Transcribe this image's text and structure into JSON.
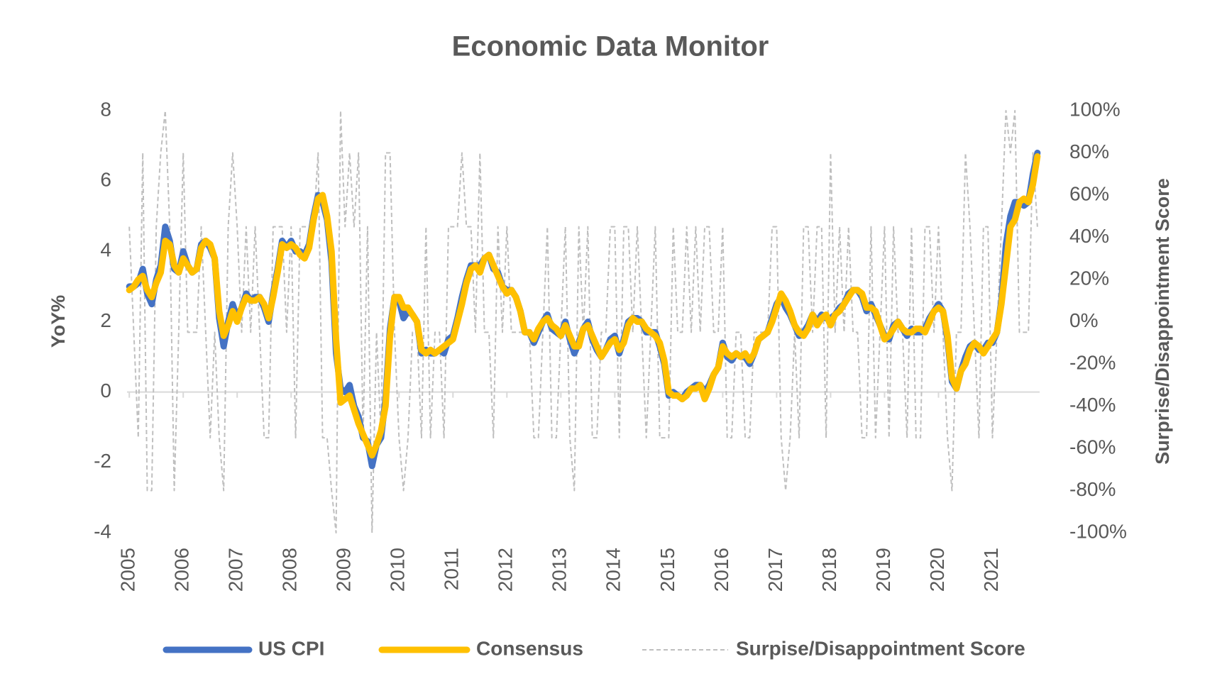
{
  "chart_data": {
    "type": "line",
    "title": "Economic Data Monitor",
    "y_label": "YoY%",
    "y2_label": "Surprise/Disappointment Score",
    "categories": [
      "2005",
      null,
      null,
      null,
      null,
      null,
      null,
      null,
      null,
      null,
      null,
      null,
      "2006",
      null,
      null,
      null,
      null,
      null,
      null,
      null,
      null,
      null,
      null,
      null,
      "2007",
      null,
      null,
      null,
      null,
      null,
      null,
      null,
      null,
      null,
      null,
      null,
      "2008",
      null,
      null,
      null,
      null,
      null,
      null,
      null,
      null,
      null,
      null,
      null,
      "2009",
      null,
      null,
      null,
      null,
      null,
      null,
      null,
      null,
      null,
      null,
      null,
      "2010",
      null,
      null,
      null,
      null,
      null,
      null,
      null,
      null,
      null,
      null,
      null,
      "2011",
      null,
      null,
      null,
      null,
      null,
      null,
      null,
      null,
      null,
      null,
      null,
      "2012",
      null,
      null,
      null,
      null,
      null,
      null,
      null,
      null,
      null,
      null,
      null,
      "2013",
      null,
      null,
      null,
      null,
      null,
      null,
      null,
      null,
      null,
      null,
      null,
      "2014",
      null,
      null,
      null,
      null,
      null,
      null,
      null,
      null,
      null,
      null,
      null,
      "2015",
      null,
      null,
      null,
      null,
      null,
      null,
      null,
      null,
      null,
      null,
      null,
      "2016",
      null,
      null,
      null,
      null,
      null,
      null,
      null,
      null,
      null,
      null,
      null,
      "2017",
      null,
      null,
      null,
      null,
      null,
      null,
      null,
      null,
      null,
      null,
      null,
      "2018",
      null,
      null,
      null,
      null,
      null,
      null,
      null,
      null,
      null,
      null,
      null,
      "2019",
      null,
      null,
      null,
      null,
      null,
      null,
      null,
      null,
      null,
      null,
      null,
      "2020",
      null,
      null,
      null,
      null,
      null,
      null,
      null,
      null,
      null,
      null,
      null,
      "2021",
      null,
      null,
      null,
      null,
      null,
      null,
      null,
      null,
      null,
      null
    ],
    "series": [
      {
        "name": "US CPI",
        "color": "#4472c4",
        "width": 9,
        "dashed": false,
        "values": [
          3.0,
          3.0,
          3.1,
          3.5,
          2.8,
          2.5,
          3.2,
          3.6,
          4.7,
          4.3,
          3.5,
          3.4,
          4.0,
          3.6,
          3.4,
          3.5,
          4.2,
          4.3,
          4.1,
          3.8,
          2.1,
          1.3,
          2.0,
          2.5,
          2.1,
          2.4,
          2.8,
          2.6,
          2.7,
          2.7,
          2.4,
          2.0,
          2.8,
          3.5,
          4.3,
          4.1,
          4.3,
          4.0,
          4.0,
          3.9,
          4.2,
          5.0,
          5.6,
          5.4,
          4.9,
          3.7,
          1.1,
          0.1,
          0.0,
          0.2,
          -0.4,
          -0.7,
          -1.3,
          -1.4,
          -2.1,
          -1.5,
          -1.3,
          -0.2,
          1.8,
          2.7,
          2.6,
          2.1,
          2.3,
          2.2,
          2.0,
          1.1,
          1.2,
          1.1,
          1.1,
          1.2,
          1.1,
          1.5,
          1.6,
          2.1,
          2.7,
          3.2,
          3.6,
          3.6,
          3.6,
          3.8,
          3.9,
          3.5,
          3.4,
          3.0,
          2.9,
          2.9,
          2.7,
          2.3,
          1.7,
          1.7,
          1.4,
          1.7,
          2.0,
          2.2,
          1.8,
          1.7,
          1.6,
          2.0,
          1.5,
          1.1,
          1.4,
          1.8,
          2.0,
          1.5,
          1.2,
          1.0,
          1.2,
          1.5,
          1.6,
          1.1,
          1.5,
          2.0,
          2.1,
          2.1,
          2.0,
          1.7,
          1.7,
          1.7,
          1.3,
          0.8,
          -0.1,
          0.0,
          -0.1,
          -0.2,
          0.0,
          0.1,
          0.2,
          0.2,
          0.0,
          0.2,
          0.5,
          0.7,
          1.4,
          1.0,
          0.9,
          1.1,
          1.0,
          1.0,
          0.8,
          1.1,
          1.5,
          1.6,
          1.7,
          2.1,
          2.5,
          2.7,
          2.4,
          2.2,
          1.9,
          1.6,
          1.7,
          1.9,
          2.2,
          2.0,
          2.2,
          2.1,
          2.1,
          2.2,
          2.4,
          2.5,
          2.8,
          2.9,
          2.9,
          2.7,
          2.3,
          2.5,
          2.2,
          1.9,
          1.6,
          1.5,
          1.9,
          2.0,
          1.8,
          1.6,
          1.8,
          1.7,
          1.7,
          1.8,
          2.1,
          2.3,
          2.5,
          2.3,
          1.5,
          0.3,
          0.1,
          0.6,
          1.0,
          1.3,
          1.4,
          1.2,
          1.2,
          1.4,
          1.4,
          1.7,
          2.6,
          4.2,
          5.0,
          5.4,
          5.4,
          5.3,
          5.4,
          6.2,
          6.8
        ]
      },
      {
        "name": "Consensus",
        "color": "#ffc000",
        "width": 9,
        "dashed": false,
        "values": [
          2.9,
          3.0,
          3.2,
          3.3,
          2.9,
          2.7,
          3.1,
          3.4,
          4.3,
          4.2,
          3.6,
          3.4,
          3.8,
          3.6,
          3.4,
          3.5,
          4.1,
          4.3,
          4.2,
          3.8,
          2.3,
          1.6,
          1.9,
          2.3,
          2.0,
          2.4,
          2.7,
          2.6,
          2.6,
          2.7,
          2.5,
          2.1,
          2.7,
          3.4,
          4.2,
          4.1,
          4.2,
          4.1,
          3.9,
          3.8,
          4.1,
          4.9,
          5.5,
          5.6,
          5.0,
          4.0,
          1.5,
          -0.3,
          -0.2,
          -0.1,
          -0.5,
          -0.9,
          -1.2,
          -1.5,
          -1.8,
          -1.5,
          -1.1,
          -0.4,
          1.6,
          2.7,
          2.7,
          2.4,
          2.4,
          2.2,
          2.0,
          1.2,
          1.1,
          1.2,
          1.1,
          1.2,
          1.3,
          1.4,
          1.5,
          2.0,
          2.5,
          3.1,
          3.5,
          3.6,
          3.4,
          3.8,
          3.9,
          3.6,
          3.3,
          3.0,
          2.8,
          2.9,
          2.7,
          2.3,
          1.7,
          1.7,
          1.5,
          1.8,
          2.0,
          2.1,
          1.9,
          1.8,
          1.6,
          1.9,
          1.6,
          1.3,
          1.3,
          1.8,
          1.9,
          1.6,
          1.3,
          1.0,
          1.2,
          1.4,
          1.5,
          1.2,
          1.4,
          1.9,
          2.1,
          2.0,
          2.0,
          1.8,
          1.7,
          1.6,
          1.4,
          0.9,
          0.0,
          -0.1,
          -0.1,
          -0.2,
          -0.1,
          0.1,
          0.1,
          0.2,
          -0.2,
          0.1,
          0.5,
          0.7,
          1.3,
          1.1,
          1.0,
          1.1,
          1.0,
          1.1,
          0.9,
          1.1,
          1.5,
          1.6,
          1.7,
          2.0,
          2.4,
          2.8,
          2.6,
          2.3,
          1.9,
          1.7,
          1.6,
          1.8,
          2.2,
          1.9,
          2.1,
          2.2,
          1.9,
          2.2,
          2.3,
          2.5,
          2.7,
          2.9,
          2.9,
          2.8,
          2.4,
          2.4,
          2.3,
          1.9,
          1.5,
          1.6,
          1.8,
          2.0,
          1.8,
          1.7,
          1.7,
          1.8,
          1.8,
          1.7,
          2.0,
          2.3,
          2.4,
          2.3,
          1.6,
          0.4,
          0.1,
          0.6,
          0.8,
          1.2,
          1.4,
          1.3,
          1.1,
          1.3,
          1.5,
          1.7,
          2.5,
          3.6,
          4.7,
          4.9,
          5.4,
          5.5,
          5.4,
          5.9,
          6.7
        ]
      },
      {
        "name": "Surpise/Disappointment Score",
        "color": "#bfbfbf",
        "width": 2,
        "dashed": true,
        "axis": "y2",
        "values": [
          45,
          -5,
          -55,
          80,
          -80,
          -80,
          45,
          80,
          100,
          45,
          -80,
          -5,
          80,
          -5,
          -5,
          -5,
          45,
          -5,
          -55,
          -5,
          -55,
          -80,
          45,
          80,
          45,
          -5,
          45,
          -5,
          45,
          -5,
          -55,
          -55,
          45,
          45,
          45,
          -5,
          45,
          -55,
          45,
          45,
          45,
          45,
          80,
          -55,
          -55,
          -80,
          -100,
          100,
          45,
          80,
          45,
          80,
          -55,
          45,
          -100,
          -5,
          -55,
          80,
          80,
          -5,
          -55,
          -80,
          -55,
          -5,
          -5,
          -55,
          45,
          -55,
          -5,
          -5,
          -55,
          45,
          45,
          45,
          80,
          45,
          45,
          -5,
          80,
          -5,
          -5,
          -55,
          45,
          -5,
          45,
          -5,
          -5,
          -5,
          -5,
          -5,
          -55,
          -55,
          -5,
          45,
          -55,
          -55,
          -5,
          45,
          -55,
          -80,
          45,
          -5,
          45,
          -55,
          -55,
          -5,
          -5,
          45,
          45,
          -55,
          45,
          45,
          -5,
          45,
          -5,
          -55,
          -5,
          45,
          -55,
          -55,
          -55,
          45,
          -5,
          -5,
          45,
          -5,
          45,
          -5,
          45,
          45,
          -5,
          -5,
          45,
          -55,
          -55,
          -5,
          -5,
          -55,
          -55,
          -5,
          -5,
          -5,
          -5,
          45,
          45,
          -55,
          -80,
          -55,
          -5,
          -55,
          45,
          45,
          -5,
          45,
          45,
          -55,
          80,
          -5,
          45,
          -5,
          45,
          -5,
          -5,
          -55,
          -55,
          45,
          -55,
          -5,
          45,
          -55,
          45,
          -5,
          -5,
          -55,
          45,
          -55,
          -55,
          45,
          45,
          -5,
          45,
          -5,
          -55,
          -80,
          -5,
          -5,
          80,
          45,
          -5,
          -55,
          45,
          45,
          -55,
          -5,
          45,
          100,
          80,
          100,
          -5,
          -5,
          -5,
          80,
          45
        ]
      }
    ],
    "ylim": [
      -4,
      8
    ],
    "yticks": [
      -4,
      -2,
      0,
      2,
      4,
      6,
      8
    ],
    "y2lim": [
      -100,
      100
    ],
    "y2ticks": [
      {
        "value": -100,
        "label": "-100%"
      },
      {
        "value": -80,
        "label": "-80%"
      },
      {
        "value": -60,
        "label": "-60%"
      },
      {
        "value": -40,
        "label": "-40%"
      },
      {
        "value": -20,
        "label": "-20%"
      },
      {
        "value": 0,
        "label": "0%"
      },
      {
        "value": 20,
        "label": "20%"
      },
      {
        "value": 40,
        "label": "40%"
      },
      {
        "value": 60,
        "label": "60%"
      },
      {
        "value": 80,
        "label": "80%"
      },
      {
        "value": 100,
        "label": "100%"
      }
    ],
    "grid": false,
    "legend": "bottom"
  }
}
